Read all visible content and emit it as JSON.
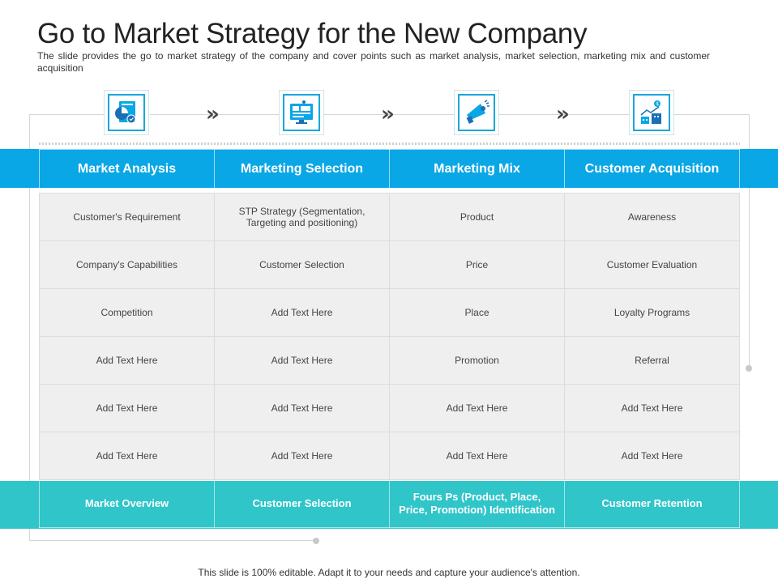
{
  "slide": {
    "title": "Go to Market Strategy for the New Company",
    "subtitle": "The slide provides the go to market strategy of the company and cover points such as market analysis, market selection, marketing mix and customer acquisition",
    "footer": "This slide is 100% editable. Adapt it to your needs and capture your audience's attention."
  },
  "icons": [
    {
      "name": "report-chart-icon"
    },
    {
      "name": "marketing-monitor-icon"
    },
    {
      "name": "megaphone-icon"
    },
    {
      "name": "money-buildings-icon"
    }
  ],
  "chevron": "»",
  "colors": {
    "header_band": "#0aa7e6",
    "footer_band": "#2fc5c9",
    "cell_bg": "#efefef",
    "icon_border": "#1aa7d9"
  },
  "table": {
    "headers": [
      "Market Analysis",
      "Marketing Selection",
      "Marketing Mix",
      "Customer Acquisition"
    ],
    "rows": [
      [
        "Customer's Requirement",
        "STP Strategy (Segmentation, Targeting and positioning)",
        "Product",
        "Awareness"
      ],
      [
        "Company's Capabilities",
        "Customer Selection",
        "Price",
        "Customer Evaluation"
      ],
      [
        "Competition",
        "Add Text Here",
        "Place",
        "Loyalty Programs"
      ],
      [
        "Add Text Here",
        "Add Text Here",
        "Promotion",
        "Referral"
      ],
      [
        "Add Text Here",
        "Add Text Here",
        "Add Text Here",
        "Add Text Here"
      ],
      [
        "Add Text Here",
        "Add Text Here",
        "Add Text Here",
        "Add Text Here"
      ]
    ],
    "footer_row": [
      "Market Overview",
      "Customer  Selection",
      "Fours Ps (Product,  Place, Price, Promotion) Identification",
      "Customer  Retention"
    ]
  }
}
